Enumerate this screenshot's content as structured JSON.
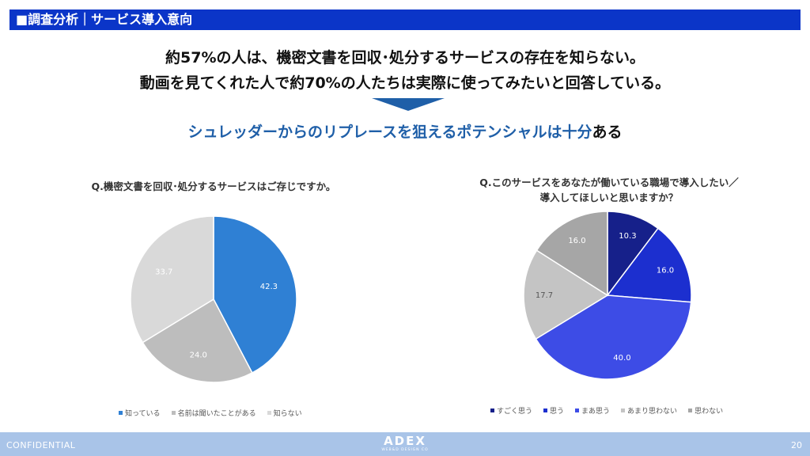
{
  "header": {
    "title": "■調査分析｜サービス導入意向"
  },
  "headline": {
    "line1": "約57%の人は、機密文書を回収･処分するサービスの存在を知らない。",
    "line2": "動画を見てくれた人で約70%の人たちは実際に使ってみたいと回答している。"
  },
  "conclusion": {
    "blue_text": "シュレッダーからのリプレースを狙えるポテンシャルは十分",
    "black_text": "ある"
  },
  "chart_data": [
    {
      "type": "pie",
      "title": "Q.機密文書を回収･処分するサービスはご存じですか。",
      "categories": [
        "知っている",
        "名前は聞いたことがある",
        "知らない"
      ],
      "values": [
        42.3,
        24.0,
        33.7
      ],
      "colors": [
        "#2f80d4",
        "#bdbdbd",
        "#d9d9d9"
      ],
      "label_colors": [
        "#ffffff",
        "#ffffff",
        "#ffffff"
      ],
      "start": "12 o'clock",
      "direction": "clockwise",
      "legend": "bottom"
    },
    {
      "type": "pie",
      "title_line1": "Q.このサービスをあなたが働いている職場で導入したい／",
      "title_line2": "導入してほしいと思いますか？",
      "categories": [
        "すごく思う",
        "思う",
        "まあ思う",
        "あまり思わない",
        "思わない"
      ],
      "values": [
        10.3,
        16.0,
        40.0,
        17.7,
        16.0
      ],
      "colors": [
        "#16208a",
        "#1c2fcf",
        "#3d4ce6",
        "#c4c4c4",
        "#a6a6a6"
      ],
      "label_colors": [
        "#ffffff",
        "#ffffff",
        "#ffffff",
        "#555555",
        "#ffffff"
      ],
      "start": "12 o'clock",
      "direction": "clockwise",
      "legend": "bottom"
    }
  ],
  "footer": {
    "left": "CONFIDENTIAL",
    "logo": "ADEX",
    "logo_sub": "WEB&D DESIGN CO",
    "page": "20"
  }
}
